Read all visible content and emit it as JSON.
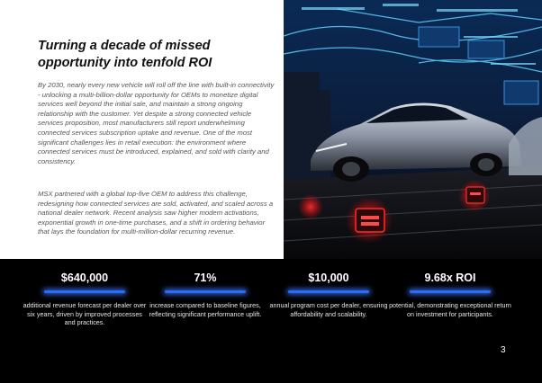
{
  "article": {
    "headline": "Turning a decade of missed opportunity into tenfold ROI",
    "paragraphs": [
      "By 2030, nearly every new vehicle will roll off the line with built-in connectivity - unlocking a multi-billion-dollar opportunity for OEMs to monetize digital services well beyond the initial sale, and maintain a strong ongoing relationship with the customer. Yet despite a strong connected vehicle services proposition, most manufacturers still report underwhelming connected services subscription uptake and revenue. One of the most significant challenges lies in retail execution: the environment where connected services must be introduced, explained, and sold with clarity and consistency.",
      "MSX partnered with a global top-five OEM to address this challenge, redesigning how connected services are sold, activated, and scaled across a national dealer network. Recent analysis saw higher modem activations, exponential growth in one-time purchases, and a shift in ordering behavior that lays the foundation for multi-million-dollar recurring revenue."
    ]
  },
  "stats": [
    {
      "value": "$640,000",
      "description": "additional revenue forecast per dealer over six years, driven by improved processes and practices."
    },
    {
      "value": "71%",
      "description": "increase compared to baseline figures, reflecting significant performance uplift."
    },
    {
      "value": "$10,000",
      "description": "annual program cost per dealer, ensuring affordability and scalability."
    },
    {
      "value": "9.68x ROI",
      "description": "potential, demonstrating exceptional return on investment for participants."
    }
  ],
  "page_number": "3",
  "colors": {
    "accent_blue": "#2d6bff",
    "taillight_red": "#ff2a2a"
  }
}
